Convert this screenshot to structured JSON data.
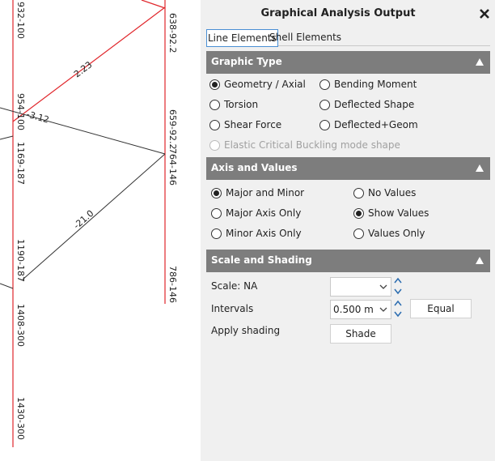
{
  "canvas": {
    "member_labels": [
      "932-100",
      "638-92.2",
      "954-100",
      "659-92.2",
      "1169-187",
      "764-146",
      "1190-187",
      "786-146",
      "1408-300",
      "1430-300"
    ],
    "force_labels": [
      "2.23",
      "-3.12",
      "-21.0"
    ]
  },
  "panel": {
    "title": "Graphical Analysis Output",
    "tabs": [
      {
        "label": "Line Elements",
        "selected": true
      },
      {
        "label": "Shell Elements"
      }
    ],
    "sections": [
      {
        "title": "Graphic Type",
        "options": [
          {
            "label": "Geometry / Axial",
            "checked": true
          },
          {
            "label": "Bending Moment"
          },
          {
            "label": "Torsion"
          },
          {
            "label": "Deflected Shape"
          },
          {
            "label": "Shear Force"
          },
          {
            "label": "Deflected+Geom"
          },
          {
            "label": "Elastic Critical Buckling mode shape",
            "disabled": true
          }
        ]
      },
      {
        "title": "Axis and Values",
        "options": [
          {
            "label": "Major and Minor",
            "checked": true
          },
          {
            "label": "No Values"
          },
          {
            "label": "Major Axis Only"
          },
          {
            "label": "Show Values",
            "checked": true
          },
          {
            "label": "Minor Axis Only"
          },
          {
            "label": "Values Only"
          }
        ]
      },
      {
        "title": "Scale and Shading"
      }
    ],
    "scale": {
      "label": "Scale: NA",
      "value": ""
    },
    "intervals": {
      "label": "Intervals",
      "value": "0.500 m",
      "button": "Equal"
    },
    "shading": {
      "label": "Apply shading",
      "button": "Shade"
    }
  }
}
